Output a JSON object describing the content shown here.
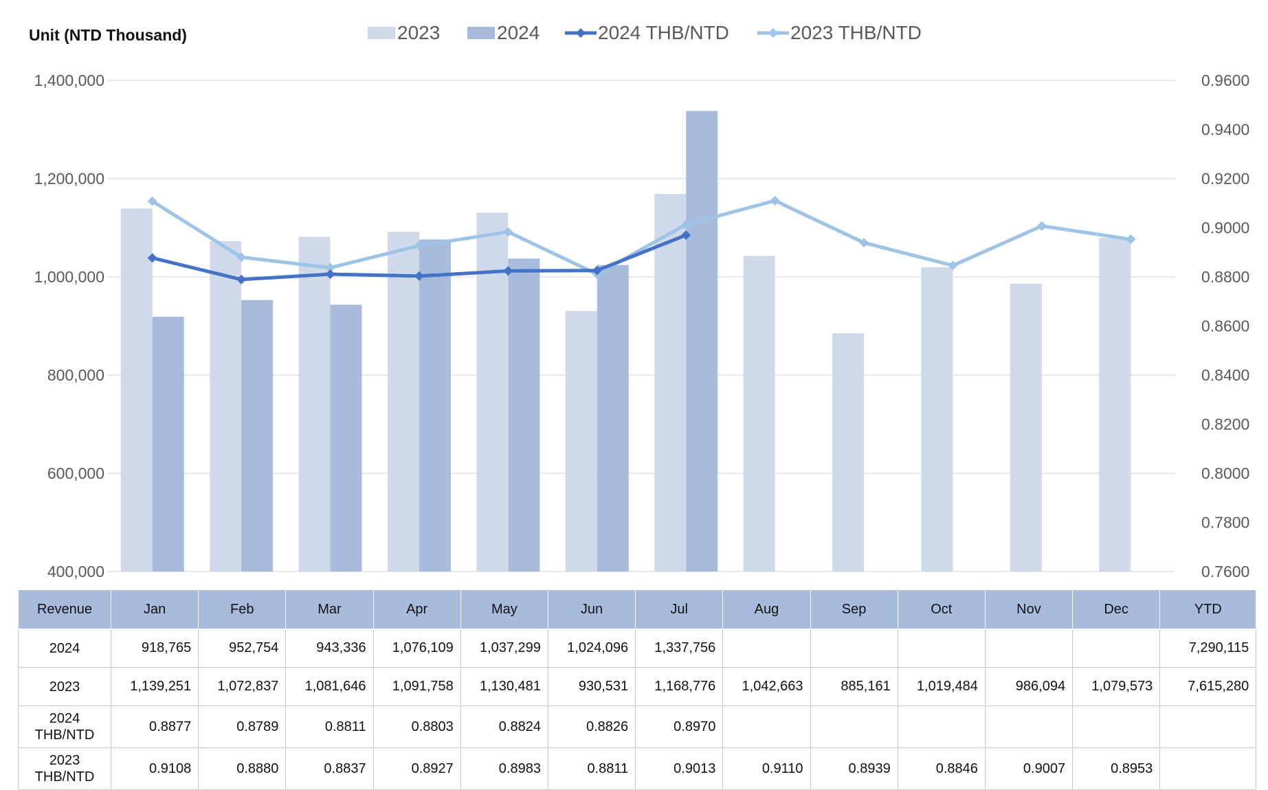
{
  "unit_label": "Unit (NTD  Thousand)",
  "colors": {
    "bar_2023": "#cfd9ea",
    "bar_2024": "#a9bbdd",
    "line_2024": "#4472c4",
    "line_2023": "#9dc3e6",
    "grid": "#d9d9d9",
    "axis_text": "#595959",
    "table_header": "#a9bbdd"
  },
  "chart_data": {
    "type": "bar",
    "title": "",
    "categories": [
      "Jan",
      "Feb",
      "Mar",
      "Apr",
      "May",
      "Jun",
      "Jul",
      "Aug",
      "Sep",
      "Oct",
      "Nov",
      "Dec"
    ],
    "series": [
      {
        "name": "2023",
        "kind": "bar",
        "axis": "left",
        "values": [
          1139251,
          1072837,
          1081646,
          1091758,
          1130481,
          930531,
          1168776,
          1042663,
          885161,
          1019484,
          986094,
          1079573
        ]
      },
      {
        "name": "2024",
        "kind": "bar",
        "axis": "left",
        "values": [
          918765,
          952754,
          943336,
          1076109,
          1037299,
          1024096,
          1337756,
          null,
          null,
          null,
          null,
          null
        ]
      },
      {
        "name": "2024 THB/NTD",
        "kind": "line",
        "axis": "right",
        "values": [
          0.8877,
          0.8789,
          0.8811,
          0.8803,
          0.8824,
          0.8826,
          0.897,
          null,
          null,
          null,
          null,
          null
        ]
      },
      {
        "name": "2023 THB/NTD",
        "kind": "line",
        "axis": "right",
        "values": [
          0.9108,
          0.888,
          0.8837,
          0.8927,
          0.8983,
          0.8811,
          0.9013,
          0.911,
          0.8939,
          0.8846,
          0.9007,
          0.8953
        ]
      }
    ],
    "y_left": {
      "min": 400000,
      "max": 1400000,
      "ticks": [
        "400,000",
        "600,000",
        "800,000",
        "1,000,000",
        "1,200,000",
        "1,400,000"
      ]
    },
    "y_right": {
      "min": 0.76,
      "max": 0.96,
      "ticks": [
        "0.7600",
        "0.7800",
        "0.8000",
        "0.8200",
        "0.8400",
        "0.8600",
        "0.8800",
        "0.9000",
        "0.9200",
        "0.9400",
        "0.9600"
      ]
    },
    "grid": true,
    "legend_position": "top",
    "legend": [
      "2023",
      "2024",
      "2024 THB/NTD",
      "2023 THB/NTD"
    ]
  },
  "table": {
    "header": [
      "Revenue",
      "Jan",
      "Feb",
      "Mar",
      "Apr",
      "May",
      "Jun",
      "Jul",
      "Aug",
      "Sep",
      "Oct",
      "Nov",
      "Dec",
      "YTD"
    ],
    "rows": [
      {
        "label": "2024",
        "cells": [
          "918,765",
          "952,754",
          "943,336",
          "1,076,109",
          "1,037,299",
          "1,024,096",
          "1,337,756",
          "",
          "",
          "",
          "",
          "",
          "7,290,115"
        ]
      },
      {
        "label": "2023",
        "cells": [
          "1,139,251",
          "1,072,837",
          "1,081,646",
          "1,091,758",
          "1,130,481",
          "930,531",
          "1,168,776",
          "1,042,663",
          "885,161",
          "1,019,484",
          "986,094",
          "1,079,573",
          "7,615,280"
        ]
      },
      {
        "label": "2024 THB/NTD",
        "cells": [
          "0.8877",
          "0.8789",
          "0.8811",
          "0.8803",
          "0.8824",
          "0.8826",
          "0.8970",
          "",
          "",
          "",
          "",
          "",
          ""
        ]
      },
      {
        "label": "2023 THB/NTD",
        "cells": [
          "0.9108",
          "0.8880",
          "0.8837",
          "0.8927",
          "0.8983",
          "0.8811",
          "0.9013",
          "0.9110",
          "0.8939",
          "0.8846",
          "0.9007",
          "0.8953",
          ""
        ]
      }
    ]
  }
}
